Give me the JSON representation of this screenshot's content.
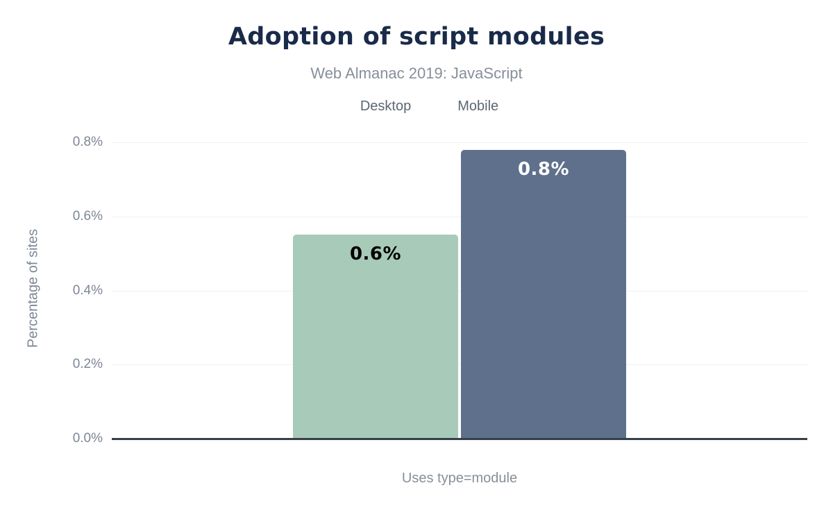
{
  "chart_data": {
    "type": "bar",
    "title": "Adoption of script modules",
    "subtitle": "Web Almanac 2019: JavaScript",
    "xlabel": "Uses type=module",
    "ylabel": "Percentage of sites",
    "categories": [
      "Uses type=module"
    ],
    "series": [
      {
        "name": "Desktop",
        "values": [
          0.55
        ],
        "display_labels": [
          "0.6%"
        ],
        "color": "#a8cab9",
        "label_color": "#000000"
      },
      {
        "name": "Mobile",
        "values": [
          0.78
        ],
        "display_labels": [
          "0.8%"
        ],
        "color": "#5e708c",
        "label_color": "#ffffff"
      }
    ],
    "ylim": [
      0,
      0.8
    ],
    "yticks": [
      {
        "value": 0.0,
        "label": "0.0%"
      },
      {
        "value": 0.2,
        "label": "0.2%"
      },
      {
        "value": 0.4,
        "label": "0.4%"
      },
      {
        "value": 0.6,
        "label": "0.6%"
      },
      {
        "value": 0.8,
        "label": "0.8%"
      }
    ],
    "grid": "horizontal",
    "legend_position": "top",
    "colors": {
      "title": "#1a2b49",
      "subtitle_text": "#868f99",
      "axis_text": "#7d8694",
      "legend_text": "#5d6672",
      "gridline": "#eff0f2",
      "axis_line": "#373f48",
      "background": "#ffffff"
    }
  }
}
